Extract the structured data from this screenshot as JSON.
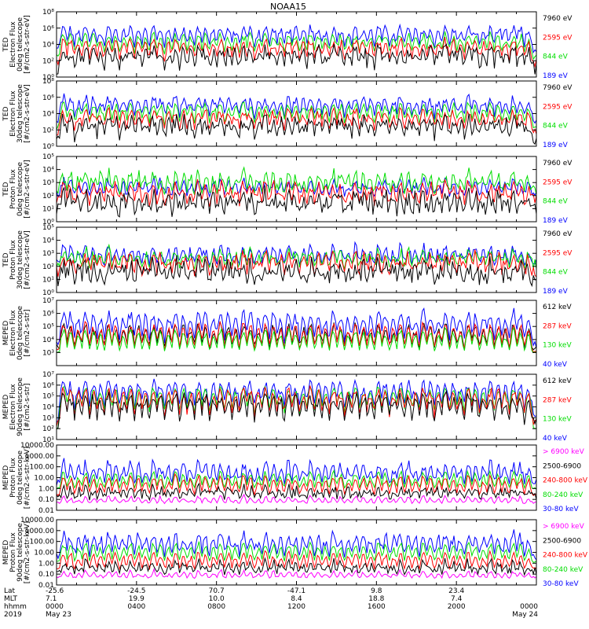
{
  "chart_data": {
    "type": "line",
    "title": "NOAA15",
    "x_range": [
      0,
      24
    ],
    "colors": {
      "blue": "#0000ff",
      "red": "#ff0000",
      "green": "#00dd00",
      "black": "#000000",
      "magenta": "#ff00ff"
    },
    "panels": [
      {
        "ylabel": [
          "TED",
          "Electron Flux",
          "0deg telescope",
          "[#/cm2-s-str-eV]"
        ],
        "log": true,
        "ylim": [
          1,
          100000000
        ],
        "yticks": [
          {
            "v": 1,
            "label": "10⁰"
          },
          {
            "v": 100,
            "label": "10²"
          },
          {
            "v": 10000,
            "label": "10⁴"
          },
          {
            "v": 1000000,
            "label": "10⁶"
          },
          {
            "v": 100000000,
            "label": "10⁸"
          }
        ],
        "legend": [
          {
            "text": "7960 eV",
            "color": "black"
          },
          {
            "text": "2595 eV",
            "color": "red"
          },
          {
            "text": "844 eV",
            "color": "green"
          },
          {
            "text": "189 eV",
            "color": "blue"
          }
        ],
        "series": [
          {
            "color": "blue",
            "base": 2500,
            "noise": 0.5,
            "peak": 400
          },
          {
            "color": "green",
            "base": 250,
            "noise": 0.4,
            "peak": 600
          },
          {
            "color": "red",
            "base": 60,
            "noise": 0.5,
            "peak": 400
          },
          {
            "color": "black",
            "base": 12,
            "noise": 0.8,
            "peak": 200
          }
        ]
      },
      {
        "ylabel": [
          "TED",
          "Electron Flux",
          "30deg telescope",
          "[#/cm2-s-str-eV]"
        ],
        "log": true,
        "ylim": [
          1,
          100000000
        ],
        "yticks": [
          {
            "v": 1,
            "label": "10⁰"
          },
          {
            "v": 100,
            "label": "10²"
          },
          {
            "v": 10000,
            "label": "10⁴"
          },
          {
            "v": 1000000,
            "label": "10⁶"
          },
          {
            "v": 100000000,
            "label": "10⁸"
          }
        ],
        "legend": [
          {
            "text": "7960 eV",
            "color": "black"
          },
          {
            "text": "2595 eV",
            "color": "red"
          },
          {
            "text": "844 eV",
            "color": "green"
          },
          {
            "text": "189 eV",
            "color": "blue"
          }
        ],
        "series": [
          {
            "color": "blue",
            "base": 1500,
            "noise": 0.5,
            "peak": 500
          },
          {
            "color": "green",
            "base": 200,
            "noise": 0.4,
            "peak": 600
          },
          {
            "color": "red",
            "base": 50,
            "noise": 0.5,
            "peak": 400
          },
          {
            "color": "black",
            "base": 10,
            "noise": 0.8,
            "peak": 200
          }
        ]
      },
      {
        "ylabel": [
          "TED",
          "Proton Flux",
          "0deg telescope",
          "[#/cm2-s-str-eV]"
        ],
        "log": true,
        "ylim": [
          1,
          100000
        ],
        "yticks": [
          {
            "v": 1,
            "label": "10⁰"
          },
          {
            "v": 10,
            "label": "10¹"
          },
          {
            "v": 100,
            "label": "10²"
          },
          {
            "v": 1000,
            "label": "10³"
          },
          {
            "v": 10000,
            "label": "10⁴"
          },
          {
            "v": 100000,
            "label": "10⁵"
          }
        ],
        "legend": [
          {
            "text": "7960 eV",
            "color": "black"
          },
          {
            "text": "2595 eV",
            "color": "red"
          },
          {
            "text": "844 eV",
            "color": "green"
          },
          {
            "text": "189 eV",
            "color": "blue"
          }
        ],
        "series": [
          {
            "color": "blue",
            "base": 150,
            "noise": 0.3,
            "peak": 10
          },
          {
            "color": "green",
            "base": 300,
            "noise": 0.5,
            "peak": 15
          },
          {
            "color": "red",
            "base": 40,
            "noise": 0.5,
            "peak": 20
          },
          {
            "color": "black",
            "base": 8,
            "noise": 0.7,
            "peak": 15
          }
        ]
      },
      {
        "ylabel": [
          "TED",
          "Proton Flux",
          "30deg telescope",
          "[#/cm2-s-str-eV]"
        ],
        "log": true,
        "ylim": [
          1,
          100000
        ],
        "yticks": [
          {
            "v": 1,
            "label": "10⁰"
          },
          {
            "v": 10,
            "label": "10¹"
          },
          {
            "v": 100,
            "label": "10²"
          },
          {
            "v": 1000,
            "label": "10³"
          },
          {
            "v": 10000,
            "label": "10⁴"
          },
          {
            "v": 100000,
            "label": "10⁵"
          }
        ],
        "legend": [
          {
            "text": "7960 eV",
            "color": "black"
          },
          {
            "text": "2595 eV",
            "color": "red"
          },
          {
            "text": "844 eV",
            "color": "green"
          },
          {
            "text": "189 eV",
            "color": "blue"
          }
        ],
        "series": [
          {
            "color": "blue",
            "base": 200,
            "noise": 0.3,
            "peak": 15
          },
          {
            "color": "green",
            "base": 150,
            "noise": 0.4,
            "peak": 10
          },
          {
            "color": "red",
            "base": 50,
            "noise": 0.5,
            "peak": 15
          },
          {
            "color": "black",
            "base": 15,
            "noise": 0.7,
            "peak": 10
          }
        ]
      },
      {
        "ylabel": [
          "MEPED",
          "Electron Flux",
          "0deg telescope",
          "[#/cm2-s-str]"
        ],
        "log": true,
        "ylim": [
          100,
          10000000
        ],
        "yticks": [
          {
            "v": 1000,
            "label": "10³"
          },
          {
            "v": 10000,
            "label": "10⁴"
          },
          {
            "v": 100000,
            "label": "10⁵"
          },
          {
            "v": 1000000,
            "label": "10⁶"
          },
          {
            "v": 10000000,
            "label": "10⁷"
          }
        ],
        "legend": [
          {
            "text": "612 keV",
            "color": "black"
          },
          {
            "text": "287 keV",
            "color": "red"
          },
          {
            "text": "130 keV",
            "color": "green"
          },
          {
            "text": "40 keV",
            "color": "blue"
          }
        ],
        "series": [
          {
            "color": "blue",
            "base": 3500,
            "noise": 0.3,
            "peak": 300
          },
          {
            "color": "black",
            "base": 2500,
            "noise": 0.25,
            "peak": 50
          },
          {
            "color": "red",
            "base": 1500,
            "noise": 0.15,
            "peak": 100
          },
          {
            "color": "green",
            "base": 1100,
            "noise": 0.05,
            "peak": 50
          }
        ]
      },
      {
        "ylabel": [
          "MEPED",
          "Electron Flux",
          "90deg telescope",
          "[#/cm2-s-str]"
        ],
        "log": true,
        "ylim": [
          10,
          10000000
        ],
        "yticks": [
          {
            "v": 10,
            "label": "10¹"
          },
          {
            "v": 100,
            "label": "10²"
          },
          {
            "v": 1000,
            "label": "10³"
          },
          {
            "v": 10000,
            "label": "10⁴"
          },
          {
            "v": 100000,
            "label": "10⁵"
          },
          {
            "v": 1000000,
            "label": "10⁶"
          },
          {
            "v": 10000000,
            "label": "10⁷"
          }
        ],
        "legend": [
          {
            "text": "612 keV",
            "color": "black"
          },
          {
            "text": "287 keV",
            "color": "red"
          },
          {
            "text": "130 keV",
            "color": "green"
          },
          {
            "text": "40 keV",
            "color": "blue"
          }
        ],
        "series": [
          {
            "color": "blue",
            "base": 800,
            "noise": 0.4,
            "peak": 2000
          },
          {
            "color": "green",
            "base": 100,
            "noise": 0.1,
            "peak": 5000
          },
          {
            "color": "red",
            "base": 400,
            "noise": 0.4,
            "peak": 800
          },
          {
            "color": "black",
            "base": 300,
            "noise": 0.5,
            "peak": 300
          }
        ]
      },
      {
        "ylabel": [
          "MEPED",
          "Proton Flux",
          "0deg telescope",
          "[#/cm2-s-str-keV]"
        ],
        "log": true,
        "ylim": [
          0.01,
          10000
        ],
        "yticks": [
          {
            "v": 0.01,
            "label": "0.01"
          },
          {
            "v": 0.1,
            "label": "0.10"
          },
          {
            "v": 1,
            "label": "1.00"
          },
          {
            "v": 10,
            "label": "10.00"
          },
          {
            "v": 100,
            "label": "100.00"
          },
          {
            "v": 1000,
            "label": "1000.00"
          },
          {
            "v": 10000,
            "label": "10000.00"
          }
        ],
        "legend": [
          {
            "text": "> 6900 keV",
            "color": "magenta"
          },
          {
            "text": "2500-6900",
            "color": "black"
          },
          {
            "text": "240-800 keV",
            "color": "red"
          },
          {
            "text": "80-240 keV",
            "color": "green"
          },
          {
            "text": "30-80 keV",
            "color": "blue"
          }
        ],
        "series": [
          {
            "color": "blue",
            "base": 3,
            "noise": 0.4,
            "peak": 60
          },
          {
            "color": "green",
            "base": 1,
            "noise": 0.08,
            "peak": 30
          },
          {
            "color": "red",
            "base": 0.3,
            "noise": 0.15,
            "peak": 40
          },
          {
            "color": "magenta",
            "base": 0.05,
            "noise": 0.1,
            "peak": 3
          },
          {
            "color": "black",
            "base": 0.2,
            "noise": 0.4,
            "peak": 5
          }
        ]
      },
      {
        "ylabel": [
          "MEPED",
          "Proton Flux",
          "90deg telescope",
          "[#/cm2-s-str-keV]"
        ],
        "log": true,
        "ylim": [
          0.01,
          10000
        ],
        "yticks": [
          {
            "v": 0.01,
            "label": "0.01"
          },
          {
            "v": 0.1,
            "label": "0.10"
          },
          {
            "v": 1,
            "label": "1.00"
          },
          {
            "v": 10,
            "label": "10.00"
          },
          {
            "v": 100,
            "label": "100.00"
          },
          {
            "v": 1000,
            "label": "1000.00"
          },
          {
            "v": 10000,
            "label": "10000.00"
          }
        ],
        "legend": [
          {
            "text": "> 6900 keV",
            "color": "magenta"
          },
          {
            "text": "2500-6900",
            "color": "black"
          },
          {
            "text": "240-800 keV",
            "color": "red"
          },
          {
            "text": "80-240 keV",
            "color": "green"
          },
          {
            "text": "30-80 keV",
            "color": "blue"
          }
        ],
        "series": [
          {
            "color": "blue",
            "base": 5,
            "noise": 0.4,
            "peak": 80
          },
          {
            "color": "green",
            "base": 1.5,
            "noise": 0.1,
            "peak": 40
          },
          {
            "color": "red",
            "base": 0.3,
            "noise": 0.15,
            "peak": 30
          },
          {
            "color": "magenta",
            "base": 0.05,
            "noise": 0.1,
            "peak": 3
          },
          {
            "color": "black",
            "base": 0.2,
            "noise": 0.4,
            "peak": 5
          }
        ]
      }
    ],
    "pass_peaks_hours": [
      0.35,
      0.7,
      1.1,
      1.45,
      1.85,
      2.2,
      2.6,
      2.95,
      3.35,
      3.7,
      4.1,
      4.45,
      4.85,
      5.2,
      5.6,
      5.95,
      6.35,
      6.7,
      7.1,
      7.45,
      7.85,
      8.2,
      8.6,
      8.95,
      9.35,
      9.7,
      10.1,
      10.45,
      10.85,
      11.2,
      11.6,
      11.95,
      12.35,
      12.7,
      13.1,
      13.45,
      13.85,
      14.2,
      14.6,
      14.95,
      15.35,
      15.7,
      16.1,
      16.45,
      16.85,
      17.2,
      17.6,
      17.95,
      18.35,
      18.7,
      19.1,
      19.45,
      19.85,
      20.2,
      20.6,
      20.95,
      21.35,
      21.7,
      22.1,
      22.45,
      22.85,
      23.2,
      23.6
    ],
    "xaxis": {
      "row_labels": [
        "Lat",
        "MLT",
        "hhmm",
        "2019"
      ],
      "ticks": [
        {
          "hour": 0,
          "lat": "-25.6",
          "mlt": "7.1",
          "hhmm": "0000",
          "date": "May 23"
        },
        {
          "hour": 4,
          "lat": "-24.5",
          "mlt": "19.9",
          "hhmm": "0400",
          "date": ""
        },
        {
          "hour": 8,
          "lat": "70.7",
          "mlt": "10.0",
          "hhmm": "0800",
          "date": ""
        },
        {
          "hour": 12,
          "lat": "-47.1",
          "mlt": "8.4",
          "hhmm": "1200",
          "date": ""
        },
        {
          "hour": 16,
          "lat": "9.8",
          "mlt": "18.8",
          "hhmm": "1600",
          "date": ""
        },
        {
          "hour": 20,
          "lat": "23.4",
          "mlt": "7.4",
          "hhmm": "2000",
          "date": ""
        },
        {
          "hour": 24,
          "lat": "",
          "mlt": "",
          "hhmm": "0000",
          "date": "May 24"
        }
      ]
    }
  }
}
